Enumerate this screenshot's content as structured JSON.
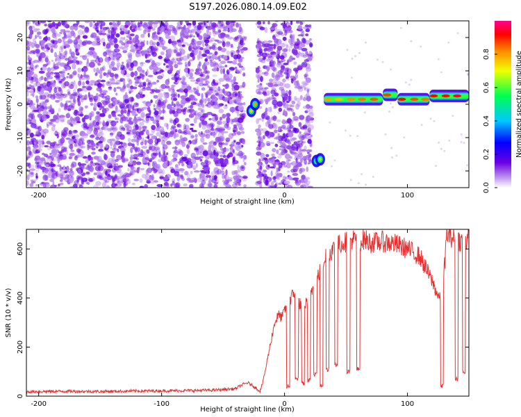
{
  "title": "S197.2026.080.14.09.E02",
  "colors": {
    "spectrogram_scatter": "#7a2be0",
    "snr_line": "#e83030",
    "axis": "#000000"
  },
  "chart_data": [
    {
      "type": "heatmap",
      "name": "spectrogram",
      "xlabel": "Height of straight line (km)",
      "ylabel": "Frequency (Hz)",
      "xlim": [
        -210,
        150
      ],
      "ylim": [
        -25,
        25
      ],
      "xticks": [
        -200,
        -100,
        0,
        100
      ],
      "yticks": [
        -20,
        -10,
        0,
        10,
        20
      ],
      "noise_regions": [
        {
          "x": [
            -210,
            -32
          ],
          "y": [
            -25,
            25
          ]
        },
        {
          "x": [
            -22,
            22
          ],
          "y": [
            -25,
            25
          ]
        }
      ],
      "gaps": [
        [
          -32,
          -22
        ]
      ],
      "signal_blobs": [
        {
          "x": -27,
          "y": -2,
          "amp": 0.75
        },
        {
          "x": -24,
          "y": 0,
          "amp": 0.8
        },
        {
          "x": 26,
          "y": -17,
          "amp": 0.6
        },
        {
          "x": 29,
          "y": -16.5,
          "amp": 0.65
        }
      ],
      "signal_band": {
        "x": [
          32,
          150
        ],
        "segments": [
          {
            "x": [
              32,
              80
            ],
            "y": 1.5,
            "amp": 0.85
          },
          {
            "x": [
              80,
              92
            ],
            "y": 2.8,
            "amp": 0.95
          },
          {
            "x": [
              92,
              118
            ],
            "y": 1.5,
            "amp": 0.9
          },
          {
            "x": [
              118,
              150
            ],
            "y": 2.5,
            "amp": 0.95
          }
        ]
      },
      "colorbar": {
        "label": "Normalized spectral amplitude",
        "ticks": [
          0.0,
          0.2,
          0.4,
          0.6,
          0.8
        ],
        "tick_labels": [
          "0.0",
          "0.2",
          "0.4",
          "0.6",
          "0.8"
        ],
        "range": [
          0,
          1
        ]
      }
    },
    {
      "type": "line",
      "name": "snr",
      "xlabel": "Height of straight line (km)",
      "ylabel": "SNR (10 * v/v)",
      "xlim": [
        -210,
        150
      ],
      "ylim": [
        0,
        680
      ],
      "xticks": [
        -200,
        -100,
        0,
        100
      ],
      "yticks": [
        0,
        200,
        400,
        600
      ],
      "series": [
        {
          "name": "SNR",
          "x": [
            -210,
            -180,
            -150,
            -120,
            -90,
            -60,
            -40,
            -35,
            -30,
            -25,
            -20,
            -18,
            -15,
            -12,
            -10,
            -8,
            -5,
            -2,
            0,
            3,
            5,
            8,
            10,
            12,
            15,
            18,
            20,
            22,
            25,
            28,
            30,
            32,
            35,
            40,
            45,
            50,
            55,
            60,
            65,
            70,
            80,
            90,
            100,
            110,
            115,
            120,
            124,
            128,
            132,
            136,
            140,
            145,
            150
          ],
          "y": [
            18,
            20,
            19,
            21,
            22,
            24,
            30,
            45,
            55,
            40,
            20,
            50,
            120,
            200,
            250,
            300,
            330,
            320,
            350,
            380,
            400,
            420,
            410,
            380,
            360,
            380,
            400,
            430,
            460,
            500,
            520,
            560,
            580,
            600,
            620,
            630,
            640,
            630,
            640,
            625,
            630,
            620,
            600,
            570,
            520,
            470,
            420,
            380,
            660,
            650,
            640,
            630,
            640
          ]
        }
      ],
      "dropouts": [
        {
          "x": 3,
          "y": 30
        },
        {
          "x": 10,
          "y": 60
        },
        {
          "x": 15,
          "y": 40
        },
        {
          "x": 20,
          "y": 55
        },
        {
          "x": 25,
          "y": 80
        },
        {
          "x": 30,
          "y": 35
        },
        {
          "x": 35,
          "y": 100
        },
        {
          "x": 42,
          "y": 120
        },
        {
          "x": 52,
          "y": 90
        },
        {
          "x": 60,
          "y": 100
        },
        {
          "x": 128,
          "y": 30
        },
        {
          "x": 140,
          "y": 60
        },
        {
          "x": 146,
          "y": 90
        }
      ]
    }
  ]
}
